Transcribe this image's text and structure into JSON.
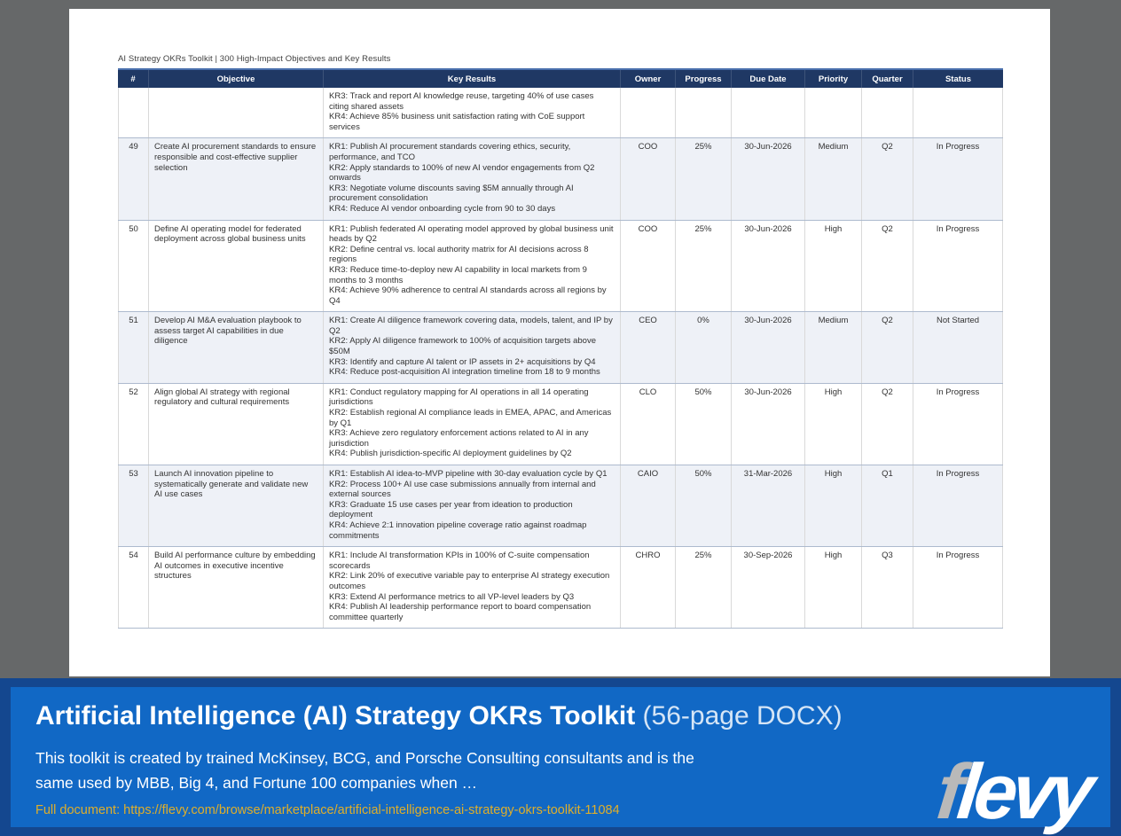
{
  "colors": {
    "stage_bg": "#666869",
    "table_header_bg": "#1f3864",
    "row_alt": "#eef1f7",
    "banner_outer": "#14478f",
    "banner_inner": "#1168c5",
    "link_color": "#dfae2a",
    "logo_f_color": "#b9b9b9"
  },
  "doc": {
    "header_line": "AI Strategy OKRs Toolkit  |  300 High-Impact Objectives and Key Results"
  },
  "table": {
    "columns": [
      "#",
      "Objective",
      "Key Results",
      "Owner",
      "Progress",
      "Due Date",
      "Priority",
      "Quarter",
      "Status"
    ],
    "rows": [
      {
        "num": "",
        "objective": "",
        "key_results": [
          "KR3: Track and report AI knowledge reuse, targeting 40% of use cases citing shared assets",
          "KR4: Achieve 85% business unit satisfaction rating with CoE support services"
        ],
        "owner": "",
        "progress": "",
        "due_date": "",
        "priority": "",
        "quarter": "",
        "status": "",
        "shaded": false
      },
      {
        "num": "49",
        "objective": "Create AI procurement standards to ensure responsible and cost-effective supplier selection",
        "key_results": [
          "KR1: Publish AI procurement standards covering ethics, security, performance, and TCO",
          "KR2: Apply standards to 100% of new AI vendor engagements from Q2 onwards",
          "KR3: Negotiate volume discounts saving $5M annually through AI procurement consolidation",
          "KR4: Reduce AI vendor onboarding cycle from 90 to 30 days"
        ],
        "owner": "COO",
        "progress": "25%",
        "due_date": "30-Jun-2026",
        "priority": "Medium",
        "quarter": "Q2",
        "status": "In Progress",
        "shaded": true
      },
      {
        "num": "50",
        "objective": "Define AI operating model for federated deployment across global business units",
        "key_results": [
          "KR1: Publish federated AI operating model approved by global business unit heads by Q2",
          "KR2: Define central vs. local authority matrix for AI decisions across 8 regions",
          "KR3: Reduce time-to-deploy new AI capability in local markets from 9 months to 3 months",
          "KR4: Achieve 90% adherence to central AI standards across all regions by Q4"
        ],
        "owner": "COO",
        "progress": "25%",
        "due_date": "30-Jun-2026",
        "priority": "High",
        "quarter": "Q2",
        "status": "In Progress",
        "shaded": false
      },
      {
        "num": "51",
        "objective": "Develop AI M&A evaluation playbook to assess target AI capabilities in due diligence",
        "key_results": [
          "KR1: Create AI diligence framework covering data, models, talent, and IP by Q2",
          "KR2: Apply AI diligence framework to 100% of acquisition targets above $50M",
          "KR3: Identify and capture AI talent or IP assets in 2+ acquisitions by Q4",
          "KR4: Reduce post-acquisition AI integration timeline from 18 to 9 months"
        ],
        "owner": "CEO",
        "progress": "0%",
        "due_date": "30-Jun-2026",
        "priority": "Medium",
        "quarter": "Q2",
        "status": "Not Started",
        "shaded": true
      },
      {
        "num": "52",
        "objective": "Align global AI strategy with regional regulatory and cultural requirements",
        "key_results": [
          "KR1: Conduct regulatory mapping for AI operations in all 14 operating jurisdictions",
          "KR2: Establish regional AI compliance leads in EMEA, APAC, and Americas by Q1",
          "KR3: Achieve zero regulatory enforcement actions related to AI in any jurisdiction",
          "KR4: Publish jurisdiction-specific AI deployment guidelines by Q2"
        ],
        "owner": "CLO",
        "progress": "50%",
        "due_date": "30-Jun-2026",
        "priority": "High",
        "quarter": "Q2",
        "status": "In Progress",
        "shaded": false
      },
      {
        "num": "53",
        "objective": "Launch AI innovation pipeline to systematically generate and validate new AI use cases",
        "key_results": [
          "KR1: Establish AI idea-to-MVP pipeline with 30-day evaluation cycle by Q1",
          "KR2: Process 100+ AI use case submissions annually from internal and external sources",
          "KR3: Graduate 15 use cases per year from ideation to production deployment",
          "KR4: Achieve 2:1 innovation pipeline coverage ratio against roadmap commitments"
        ],
        "owner": "CAIO",
        "progress": "50%",
        "due_date": "31-Mar-2026",
        "priority": "High",
        "quarter": "Q1",
        "status": "In Progress",
        "shaded": true
      },
      {
        "num": "54",
        "objective": "Build AI performance culture by embedding AI outcomes in executive incentive structures",
        "key_results": [
          "KR1: Include AI transformation KPIs in 100% of C-suite compensation scorecards",
          "KR2: Link 20% of executive variable pay to enterprise AI strategy execution outcomes",
          "KR3: Extend AI performance metrics to all VP-level leaders by Q3",
          "KR4: Publish AI leadership performance report to board compensation committee quarterly"
        ],
        "owner": "CHRO",
        "progress": "25%",
        "due_date": "30-Sep-2026",
        "priority": "High",
        "quarter": "Q3",
        "status": "In Progress",
        "shaded": false
      }
    ]
  },
  "banner": {
    "title_bold": "Artificial Intelligence (AI) Strategy OKRs Toolkit",
    "title_suffix": " (56-page DOCX)",
    "description": "This toolkit is created by trained McKinsey, BCG, and Porsche Consulting consultants and is the\nsame used by MBB, Big 4, and Fortune 100 companies when …",
    "link": "Full document: https://flevy.com/browse/marketplace/artificial-intelligence-ai-strategy-okrs-toolkit-11084",
    "logo_f": "f",
    "logo_rest": "levy"
  }
}
